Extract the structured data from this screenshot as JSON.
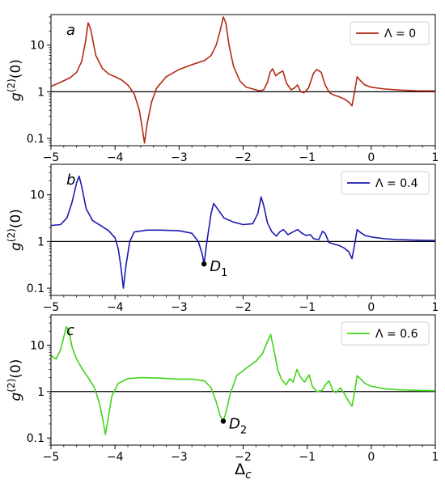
{
  "chart_data": [
    {
      "type": "line",
      "panel_label": "a",
      "xlim": [
        -5,
        1
      ],
      "ylim": [
        0.07,
        45
      ],
      "yscale": "log",
      "xticks": [
        -5,
        -4,
        -3,
        -2,
        -1,
        0,
        1
      ],
      "xtick_labels": [
        "−5",
        "−4",
        "−3",
        "−2",
        "−1",
        "0",
        "1"
      ],
      "yticks": [
        0.1,
        1,
        10
      ],
      "ytick_labels": [
        "0.1",
        "1",
        "10"
      ],
      "ylabel_base": "g",
      "ylabel_sup": "(2)",
      "ylabel_tail": "(0)",
      "xlabel": "",
      "reference_line_y": 1,
      "grid": false,
      "legend_position": "top-right",
      "series": [
        {
          "name": "Λ = 0",
          "color": "#b22a10",
          "points": [
            [
              -5.0,
              1.3
            ],
            [
              -4.85,
              1.6
            ],
            [
              -4.7,
              2.0
            ],
            [
              -4.6,
              2.6
            ],
            [
              -4.52,
              4.5
            ],
            [
              -4.46,
              12
            ],
            [
              -4.42,
              30
            ],
            [
              -4.38,
              22
            ],
            [
              -4.3,
              6
            ],
            [
              -4.2,
              3.2
            ],
            [
              -4.1,
              2.4
            ],
            [
              -4.0,
              2.1
            ],
            [
              -3.9,
              1.8
            ],
            [
              -3.8,
              1.4
            ],
            [
              -3.7,
              0.9
            ],
            [
              -3.62,
              0.4
            ],
            [
              -3.57,
              0.15
            ],
            [
              -3.54,
              0.08
            ],
            [
              -3.5,
              0.2
            ],
            [
              -3.43,
              0.6
            ],
            [
              -3.35,
              1.2
            ],
            [
              -3.2,
              2.1
            ],
            [
              -3.0,
              3.0
            ],
            [
              -2.8,
              3.8
            ],
            [
              -2.6,
              4.7
            ],
            [
              -2.5,
              6
            ],
            [
              -2.42,
              10
            ],
            [
              -2.36,
              20
            ],
            [
              -2.31,
              40
            ],
            [
              -2.27,
              30
            ],
            [
              -2.22,
              10
            ],
            [
              -2.15,
              3.5
            ],
            [
              -2.05,
              1.7
            ],
            [
              -1.95,
              1.25
            ],
            [
              -1.85,
              1.15
            ],
            [
              -1.75,
              1.05
            ],
            [
              -1.68,
              1.1
            ],
            [
              -1.62,
              1.6
            ],
            [
              -1.58,
              2.6
            ],
            [
              -1.54,
              3.1
            ],
            [
              -1.49,
              2.2
            ],
            [
              -1.44,
              2.5
            ],
            [
              -1.38,
              2.8
            ],
            [
              -1.32,
              1.5
            ],
            [
              -1.25,
              1.1
            ],
            [
              -1.2,
              1.2
            ],
            [
              -1.15,
              1.4
            ],
            [
              -1.1,
              1.0
            ],
            [
              -1.05,
              0.95
            ],
            [
              -0.98,
              1.2
            ],
            [
              -0.9,
              2.5
            ],
            [
              -0.85,
              3.0
            ],
            [
              -0.78,
              2.6
            ],
            [
              -0.72,
              1.4
            ],
            [
              -0.65,
              0.95
            ],
            [
              -0.58,
              0.85
            ],
            [
              -0.5,
              0.78
            ],
            [
              -0.42,
              0.7
            ],
            [
              -0.35,
              0.6
            ],
            [
              -0.3,
              0.5
            ],
            [
              -0.26,
              1.0
            ],
            [
              -0.22,
              2.1
            ],
            [
              -0.18,
              1.8
            ],
            [
              -0.1,
              1.4
            ],
            [
              0.0,
              1.25
            ],
            [
              0.2,
              1.15
            ],
            [
              0.4,
              1.1
            ],
            [
              0.7,
              1.05
            ],
            [
              1.0,
              1.04
            ]
          ]
        }
      ],
      "annotations": []
    },
    {
      "type": "line",
      "panel_label": "b",
      "xlim": [
        -5,
        1
      ],
      "ylim": [
        0.07,
        45
      ],
      "yscale": "log",
      "xticks": [
        -5,
        -4,
        -3,
        -2,
        -1,
        0,
        1
      ],
      "xtick_labels": [
        "−5",
        "−4",
        "−3",
        "−2",
        "−1",
        "0",
        "1"
      ],
      "yticks": [
        0.1,
        1,
        10
      ],
      "ytick_labels": [
        "0.1",
        "1",
        "10"
      ],
      "ylabel_base": "g",
      "ylabel_sup": "(2)",
      "ylabel_tail": "(0)",
      "xlabel": "",
      "reference_line_y": 1,
      "grid": false,
      "legend_position": "top-right",
      "series": [
        {
          "name": "Λ = 0.4",
          "color": "#1c1ab0",
          "points": [
            [
              -5.0,
              2.2
            ],
            [
              -4.85,
              2.3
            ],
            [
              -4.75,
              3.2
            ],
            [
              -4.67,
              7
            ],
            [
              -4.6,
              18
            ],
            [
              -4.56,
              25
            ],
            [
              -4.52,
              15
            ],
            [
              -4.45,
              5
            ],
            [
              -4.35,
              2.8
            ],
            [
              -4.2,
              2.1
            ],
            [
              -4.1,
              1.7
            ],
            [
              -4.0,
              1.2
            ],
            [
              -3.95,
              0.7
            ],
            [
              -3.91,
              0.3
            ],
            [
              -3.87,
              0.1
            ],
            [
              -3.83,
              0.3
            ],
            [
              -3.77,
              1.0
            ],
            [
              -3.7,
              1.6
            ],
            [
              -3.5,
              1.75
            ],
            [
              -3.3,
              1.75
            ],
            [
              -3.0,
              1.7
            ],
            [
              -2.8,
              1.5
            ],
            [
              -2.7,
              1.0
            ],
            [
              -2.64,
              0.55
            ],
            [
              -2.61,
              0.33
            ],
            [
              -2.57,
              0.9
            ],
            [
              -2.5,
              4
            ],
            [
              -2.46,
              6.5
            ],
            [
              -2.4,
              5
            ],
            [
              -2.3,
              3.2
            ],
            [
              -2.15,
              2.6
            ],
            [
              -2.0,
              2.3
            ],
            [
              -1.85,
              2.4
            ],
            [
              -1.77,
              4
            ],
            [
              -1.72,
              9
            ],
            [
              -1.68,
              6
            ],
            [
              -1.62,
              2.5
            ],
            [
              -1.55,
              1.6
            ],
            [
              -1.48,
              1.3
            ],
            [
              -1.43,
              1.6
            ],
            [
              -1.37,
              1.8
            ],
            [
              -1.3,
              1.4
            ],
            [
              -1.22,
              1.6
            ],
            [
              -1.15,
              1.8
            ],
            [
              -1.08,
              1.5
            ],
            [
              -1.02,
              1.35
            ],
            [
              -0.95,
              1.4
            ],
            [
              -0.9,
              1.15
            ],
            [
              -0.82,
              1.1
            ],
            [
              -0.76,
              1.65
            ],
            [
              -0.72,
              1.5
            ],
            [
              -0.66,
              0.95
            ],
            [
              -0.58,
              0.88
            ],
            [
              -0.5,
              0.82
            ],
            [
              -0.42,
              0.72
            ],
            [
              -0.35,
              0.6
            ],
            [
              -0.3,
              0.43
            ],
            [
              -0.26,
              0.85
            ],
            [
              -0.22,
              1.8
            ],
            [
              -0.18,
              1.6
            ],
            [
              -0.1,
              1.35
            ],
            [
              0.0,
              1.25
            ],
            [
              0.2,
              1.15
            ],
            [
              0.4,
              1.1
            ],
            [
              0.7,
              1.07
            ],
            [
              1.0,
              1.05
            ]
          ]
        }
      ],
      "annotations": [
        {
          "label": "D",
          "subscript": "1",
          "x": -2.61,
          "y": 0.33
        }
      ]
    },
    {
      "type": "line",
      "panel_label": "c",
      "xlim": [
        -5,
        1
      ],
      "ylim": [
        0.07,
        45
      ],
      "yscale": "log",
      "xticks": [
        -5,
        -4,
        -3,
        -2,
        -1,
        0,
        1
      ],
      "xtick_labels": [
        "−5",
        "−4",
        "−3",
        "−2",
        "−1",
        "0",
        "1"
      ],
      "yticks": [
        0.1,
        1,
        10
      ],
      "ytick_labels": [
        "0.1",
        "1",
        "10"
      ],
      "ylabel_base": "g",
      "ylabel_sup": "(2)",
      "ylabel_tail": "(0)",
      "xlabel_base": "Δ",
      "xlabel_sub": "c",
      "reference_line_y": 1,
      "grid": false,
      "legend_position": "top-right",
      "series": [
        {
          "name": "Λ = 0.6",
          "color": "#3fd41a",
          "points": [
            [
              -5.0,
              6
            ],
            [
              -4.92,
              5
            ],
            [
              -4.85,
              8
            ],
            [
              -4.8,
              15
            ],
            [
              -4.76,
              25
            ],
            [
              -4.72,
              20
            ],
            [
              -4.67,
              9
            ],
            [
              -4.6,
              5
            ],
            [
              -4.52,
              3.2
            ],
            [
              -4.42,
              2
            ],
            [
              -4.32,
              1.2
            ],
            [
              -4.25,
              0.6
            ],
            [
              -4.19,
              0.25
            ],
            [
              -4.15,
              0.12
            ],
            [
              -4.11,
              0.25
            ],
            [
              -4.05,
              0.8
            ],
            [
              -3.95,
              1.5
            ],
            [
              -3.8,
              1.9
            ],
            [
              -3.6,
              2.0
            ],
            [
              -3.3,
              1.95
            ],
            [
              -3.0,
              1.85
            ],
            [
              -2.8,
              1.85
            ],
            [
              -2.6,
              1.7
            ],
            [
              -2.5,
              1.2
            ],
            [
              -2.42,
              0.6
            ],
            [
              -2.36,
              0.3
            ],
            [
              -2.31,
              0.23
            ],
            [
              -2.27,
              0.35
            ],
            [
              -2.2,
              0.9
            ],
            [
              -2.1,
              2.2
            ],
            [
              -1.95,
              3.2
            ],
            [
              -1.8,
              4.5
            ],
            [
              -1.7,
              6.5
            ],
            [
              -1.62,
              12
            ],
            [
              -1.57,
              17
            ],
            [
              -1.52,
              8
            ],
            [
              -1.46,
              3
            ],
            [
              -1.4,
              1.8
            ],
            [
              -1.33,
              1.4
            ],
            [
              -1.27,
              1.9
            ],
            [
              -1.22,
              1.6
            ],
            [
              -1.16,
              3.0
            ],
            [
              -1.1,
              2.0
            ],
            [
              -1.04,
              1.6
            ],
            [
              -0.97,
              2.3
            ],
            [
              -0.92,
              1.3
            ],
            [
              -0.85,
              1.0
            ],
            [
              -0.77,
              1.05
            ],
            [
              -0.7,
              1.5
            ],
            [
              -0.66,
              1.7
            ],
            [
              -0.6,
              1.05
            ],
            [
              -0.55,
              0.95
            ],
            [
              -0.48,
              1.2
            ],
            [
              -0.42,
              0.9
            ],
            [
              -0.35,
              0.6
            ],
            [
              -0.3,
              0.48
            ],
            [
              -0.26,
              1.0
            ],
            [
              -0.22,
              2.2
            ],
            [
              -0.17,
              1.9
            ],
            [
              -0.1,
              1.5
            ],
            [
              0.0,
              1.3
            ],
            [
              0.2,
              1.15
            ],
            [
              0.4,
              1.1
            ],
            [
              0.7,
              1.06
            ],
            [
              1.0,
              1.04
            ]
          ]
        }
      ],
      "annotations": [
        {
          "label": "D",
          "subscript": "2",
          "x": -2.31,
          "y": 0.23
        }
      ]
    }
  ]
}
